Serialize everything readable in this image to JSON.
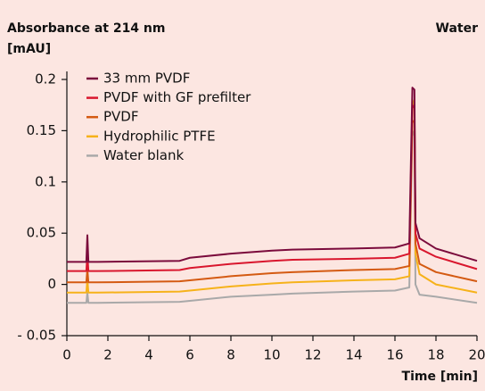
{
  "chart_data": {
    "type": "line",
    "ylabel": [
      "Absorbance at 214 nm",
      "[mAU]"
    ],
    "annotation": "Water",
    "xlabel": "Time [min]",
    "x": [
      0,
      0.95,
      1.0,
      1.05,
      1.5,
      5.5,
      6,
      8,
      10,
      11,
      14,
      16,
      16.7,
      16.85,
      16.95,
      17.0,
      17.2,
      18,
      20
    ],
    "series": [
      {
        "name": "33 mm PVDF",
        "color": "#7b0b3c",
        "values": [
          0.022,
          0.022,
          0.048,
          0.022,
          0.022,
          0.023,
          0.026,
          0.03,
          0.033,
          0.034,
          0.035,
          0.036,
          0.04,
          0.192,
          0.19,
          0.06,
          0.045,
          0.035,
          0.023
        ]
      },
      {
        "name": "PVDF with GF prefilter",
        "color": "#d9172e",
        "values": [
          0.013,
          0.013,
          0.03,
          0.013,
          0.013,
          0.014,
          0.016,
          0.02,
          0.023,
          0.024,
          0.025,
          0.026,
          0.03,
          0.175,
          0.172,
          0.05,
          0.035,
          0.027,
          0.015
        ]
      },
      {
        "name": "PVDF",
        "color": "#d45a12",
        "values": [
          0.002,
          0.002,
          0.015,
          0.002,
          0.002,
          0.003,
          0.004,
          0.008,
          0.011,
          0.012,
          0.014,
          0.015,
          0.018,
          0.16,
          0.158,
          0.04,
          0.02,
          0.012,
          0.003
        ]
      },
      {
        "name": "Hydrophilic PTFE",
        "color": "#f6b21a",
        "values": [
          -0.008,
          -0.008,
          0.005,
          -0.008,
          -0.008,
          -0.007,
          -0.006,
          -0.002,
          0.001,
          0.002,
          0.004,
          0.005,
          0.008,
          0.18,
          0.175,
          0.03,
          0.01,
          0.0,
          -0.008
        ]
      },
      {
        "name": "Water blank",
        "color": "#a9a9a9",
        "values": [
          -0.018,
          -0.018,
          -0.008,
          -0.018,
          -0.018,
          -0.017,
          -0.016,
          -0.012,
          -0.01,
          -0.009,
          -0.007,
          -0.006,
          -0.003,
          0.15,
          0.145,
          0.0,
          -0.01,
          -0.012,
          -0.018
        ]
      }
    ],
    "xlim": [
      0,
      20
    ],
    "xticks": [
      0,
      2,
      4,
      6,
      8,
      10,
      12,
      14,
      16,
      18,
      20
    ],
    "ylim": [
      -0.05,
      0.2
    ],
    "yticks": [
      0.2,
      0.15,
      0.1,
      0.05,
      0,
      {
        "value": -0.05,
        "label": "- 0.05"
      }
    ],
    "grid": false,
    "legend": "upper left"
  }
}
